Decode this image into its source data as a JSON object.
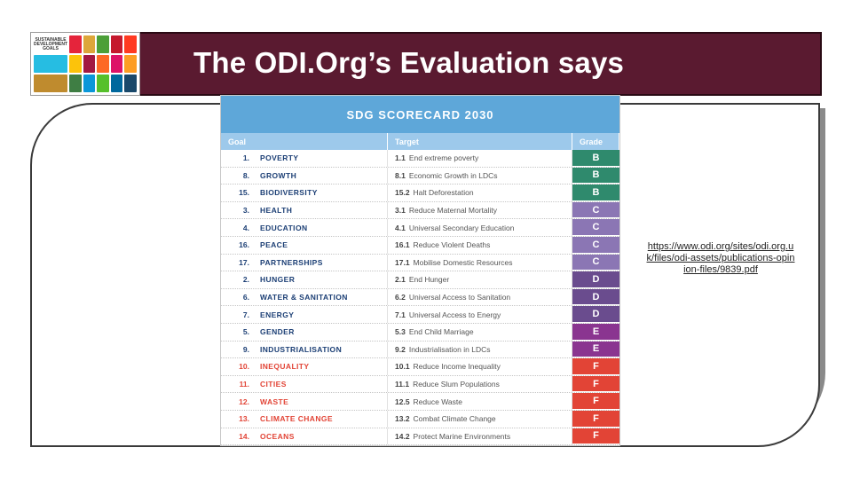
{
  "slide": {
    "title": "The ODI.Org’s Evaluation says"
  },
  "logo": {
    "wordmark": "SUSTAINABLE DEVELOPMENT GOALS",
    "tile_colors": [
      "#ffffff",
      "#e5243b",
      "#dda63a",
      "#4c9f38",
      "#c5192d",
      "#ff3a21",
      "#26bde2",
      "#fcc30b",
      "#a21942",
      "#fd6925",
      "#dd1367",
      "#fd9d24",
      "#bf8b2e",
      "#3f7e44",
      "#0a97d9",
      "#56c02b",
      "#00689d",
      "#19486a"
    ]
  },
  "scorecard": {
    "title": "SDG SCORECARD 2030",
    "headers": {
      "goal": "Goal",
      "target": "Target",
      "grade": "Grade"
    },
    "grade_colors": {
      "B": "#2f8a6d",
      "C": "#8b76b4",
      "D": "#6a4c8e",
      "E": "#8a3590",
      "F": "#e24436"
    },
    "rows": [
      {
        "num": "1.",
        "goal": "POVERTY",
        "tnum": "1.1",
        "target": "End extreme poverty",
        "grade": "B"
      },
      {
        "num": "8.",
        "goal": "GROWTH",
        "tnum": "8.1",
        "target": "Economic Growth in LDCs",
        "grade": "B"
      },
      {
        "num": "15.",
        "goal": "BIODIVERSITY",
        "tnum": "15.2",
        "target": "Halt Deforestation",
        "grade": "B"
      },
      {
        "num": "3.",
        "goal": "HEALTH",
        "tnum": "3.1",
        "target": "Reduce Maternal Mortality",
        "grade": "C"
      },
      {
        "num": "4.",
        "goal": "EDUCATION",
        "tnum": "4.1",
        "target": "Universal Secondary Education",
        "grade": "C"
      },
      {
        "num": "16.",
        "goal": "PEACE",
        "tnum": "16.1",
        "target": "Reduce Violent Deaths",
        "grade": "C"
      },
      {
        "num": "17.",
        "goal": "PARTNERSHIPS",
        "tnum": "17.1",
        "target": "Mobilise Domestic Resources",
        "grade": "C"
      },
      {
        "num": "2.",
        "goal": "HUNGER",
        "tnum": "2.1",
        "target": "End Hunger",
        "grade": "D"
      },
      {
        "num": "6.",
        "goal": "WATER & SANITATION",
        "tnum": "6.2",
        "target": "Universal Access to Sanitation",
        "grade": "D"
      },
      {
        "num": "7.",
        "goal": "ENERGY",
        "tnum": "7.1",
        "target": "Universal Access to Energy",
        "grade": "D"
      },
      {
        "num": "5.",
        "goal": "GENDER",
        "tnum": "5.3",
        "target": "End Child Marriage",
        "grade": "E"
      },
      {
        "num": "9.",
        "goal": "INDUSTRIALISATION",
        "tnum": "9.2",
        "target": "Industrialisation in LDCs",
        "grade": "E"
      },
      {
        "num": "10.",
        "goal": "INEQUALITY",
        "tnum": "10.1",
        "target": "Reduce Income Inequality",
        "grade": "F"
      },
      {
        "num": "11.",
        "goal": "CITIES",
        "tnum": "11.1",
        "target": "Reduce Slum Populations",
        "grade": "F"
      },
      {
        "num": "12.",
        "goal": "WASTE",
        "tnum": "12.5",
        "target": "Reduce Waste",
        "grade": "F"
      },
      {
        "num": "13.",
        "goal": "CLIMATE CHANGE",
        "tnum": "13.2",
        "target": "Combat Climate Change",
        "grade": "F"
      },
      {
        "num": "14.",
        "goal": "OCEANS",
        "tnum": "14.2",
        "target": "Protect Marine Environments",
        "grade": "F"
      }
    ]
  },
  "source_link": "https://www.odi.org/sites/odi.org.uk/files/odi-assets/publications-opinion-files/9839.pdf"
}
